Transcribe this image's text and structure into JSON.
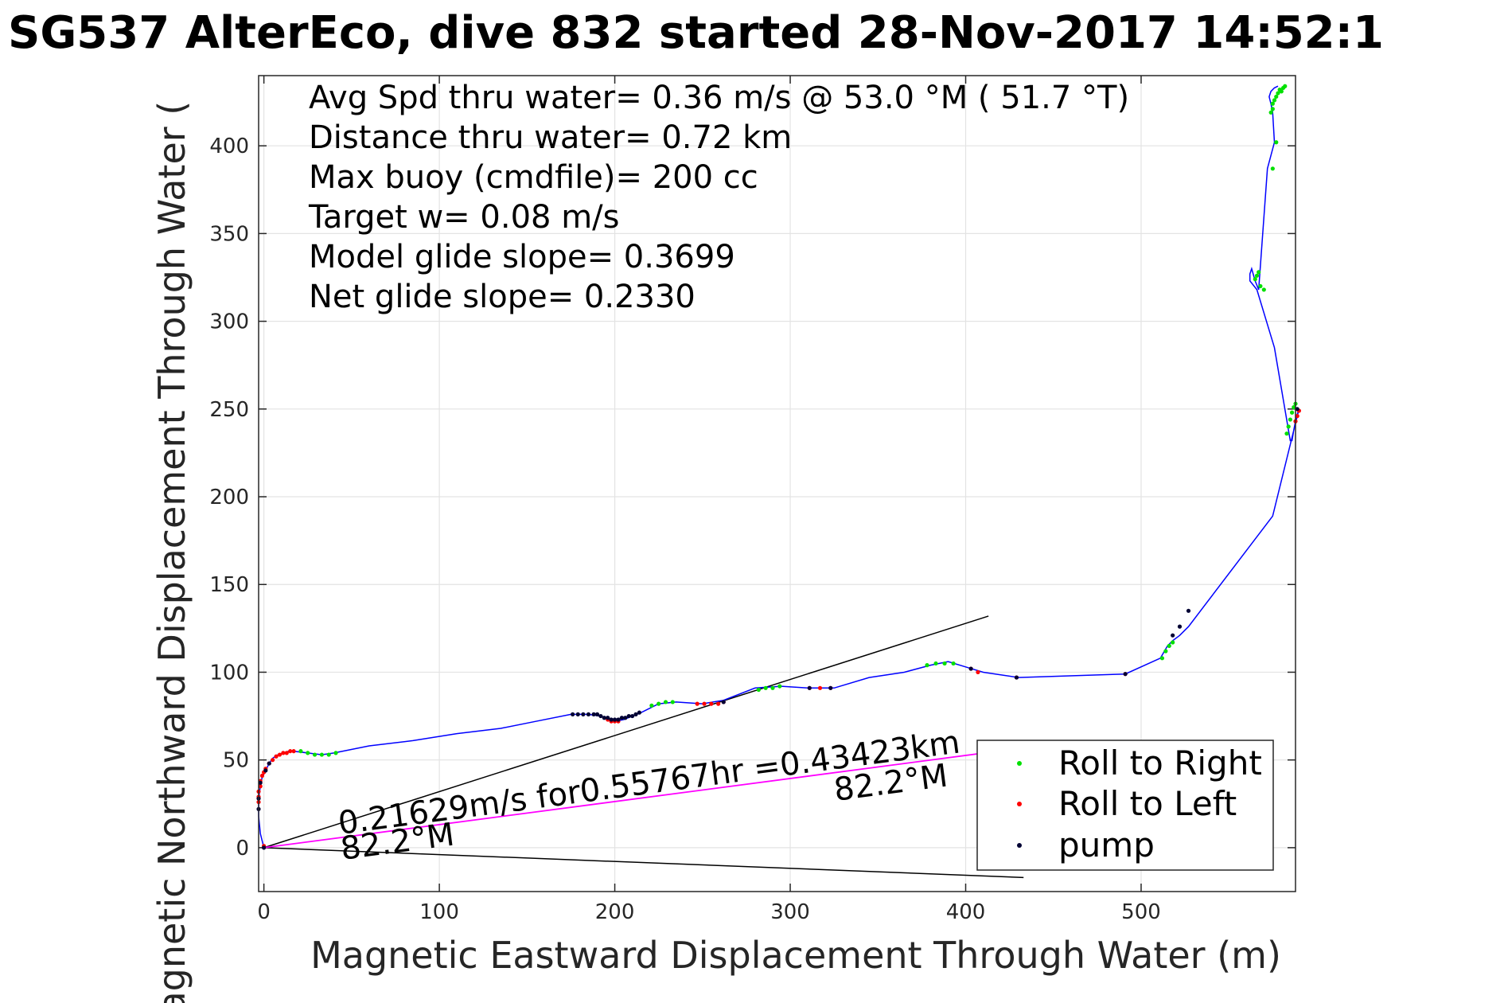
{
  "chart_data": {
    "type": "line",
    "title": "SG537 AlterEco, dive 832 started 28-Nov-2017 14:52:1",
    "xlabel": "Magnetic Eastward Displacement Through Water (m)",
    "ylabel": "Magnetic Northward Displacement Through Water (",
    "xlim": [
      -3,
      588
    ],
    "ylim": [
      -25,
      440
    ],
    "xticks": [
      "0",
      "100",
      "200",
      "300",
      "400",
      "500"
    ],
    "yticks": [
      "0",
      "50",
      "100",
      "150",
      "200",
      "250",
      "300",
      "350",
      "400"
    ],
    "grid": true,
    "colors": {
      "track": "#0000ff",
      "roll_right": "#00e000",
      "roll_left": "#ff0000",
      "pump": "#000033",
      "current_vector": "#ff00ff",
      "cone_lines": "#000000"
    },
    "info_lines": [
      "Avg Spd thru water=  0.36 m/s @  53.0 °M ( 51.7 °T)",
      "Distance thru water=  0.72 km",
      "Max buoy (cmdfile)= 200 cc",
      "Target w= 0.08 m/s",
      "Model glide slope= 0.3699",
      "Net glide slope= 0.2330"
    ],
    "annotations": {
      "current_label": "0.21629m/s for0.55767hr =0.43423km",
      "heading_end": "82.2°M",
      "heading_start": "82.2°M"
    },
    "legend": {
      "placement": "bottom-right",
      "entries": [
        "Roll to Right",
        "Roll to Left",
        "pump"
      ]
    },
    "cone_lines": [
      {
        "x": [
          0,
          413
        ],
        "y": [
          0,
          132
        ]
      },
      {
        "x": [
          0,
          433
        ],
        "y": [
          0,
          -17
        ]
      }
    ],
    "current_vector": {
      "x": [
        0,
        426
      ],
      "y": [
        0,
        56
      ]
    },
    "track": {
      "x": [
        0,
        -2,
        -3,
        -3,
        -2,
        -1,
        1,
        3,
        5,
        8,
        11,
        14,
        17,
        25,
        33,
        40,
        60,
        85,
        110,
        135,
        155,
        175,
        185,
        192,
        197,
        200,
        205,
        210,
        215,
        225,
        235,
        250,
        262,
        280,
        295,
        310,
        325,
        345,
        365,
        380,
        390,
        400,
        410,
        430,
        491,
        511,
        515,
        518,
        522,
        527,
        575,
        590,
        589,
        588,
        587,
        586,
        585,
        576,
        566,
        562,
        562,
        563,
        565,
        567,
        572,
        576,
        575,
        574,
        573,
        574,
        576,
        578
      ],
      "y": [
        0,
        8,
        18,
        28,
        35,
        40,
        44,
        48,
        51,
        53,
        54,
        55,
        55,
        54,
        53,
        54,
        58,
        61,
        65,
        68,
        72,
        76,
        76,
        75,
        73,
        72,
        73,
        75,
        77,
        82,
        83,
        82,
        84,
        91,
        92,
        91,
        91,
        97,
        100,
        104,
        106,
        103,
        100,
        97,
        99,
        108,
        115,
        118,
        121,
        126,
        189,
        250,
        247,
        243,
        238,
        232,
        232,
        285,
        318,
        323,
        327,
        330,
        323,
        318,
        387,
        402,
        419,
        424,
        428,
        431,
        433,
        434
      ]
    },
    "roll_right": {
      "x": [
        21,
        25,
        29,
        33,
        37,
        41,
        221,
        225,
        229,
        233,
        282,
        286,
        290,
        294,
        378,
        383,
        388,
        393,
        512,
        514,
        516,
        518,
        565,
        566,
        567,
        568,
        570,
        575,
        577,
        578,
        579,
        580,
        581,
        582,
        583,
        584,
        585,
        586,
        587,
        588,
        574,
        575,
        575,
        576,
        577
      ],
      "y": [
        55,
        54,
        53,
        53,
        53,
        54,
        81,
        82,
        83,
        83,
        90,
        91,
        91,
        92,
        104,
        105,
        105,
        105,
        108,
        112,
        115,
        117,
        324,
        326,
        328,
        320,
        318,
        387,
        402,
        430,
        432,
        431,
        433,
        434,
        236,
        240,
        244,
        248,
        251,
        253,
        419,
        421,
        424,
        426,
        428
      ]
    },
    "roll_left": {
      "x": [
        -3,
        -3,
        -3,
        -2,
        -2,
        -1,
        0,
        1,
        3,
        5,
        7,
        9,
        11,
        13,
        15,
        17,
        0,
        196,
        198,
        200,
        202,
        247,
        251,
        255,
        259,
        262,
        311,
        317,
        323,
        403,
        407,
        429,
        491,
        590,
        589,
        588
      ],
      "y": [
        26,
        29,
        32,
        35,
        38,
        41,
        43,
        45,
        48,
        50,
        52,
        53,
        54,
        54,
        55,
        55,
        1,
        73,
        72,
        72,
        72,
        82,
        82,
        82,
        82,
        83,
        91,
        91,
        91,
        102,
        100,
        97,
        99,
        249,
        246,
        243
      ]
    },
    "pump": {
      "x": [
        0,
        -3,
        -3,
        -2,
        1,
        3,
        176,
        179,
        182,
        185,
        188,
        190,
        192,
        194,
        196,
        198,
        200,
        202,
        204,
        206,
        208,
        210,
        212,
        214,
        262,
        311,
        323,
        403,
        429,
        491,
        518,
        522,
        527,
        589
      ],
      "y": [
        0,
        22,
        28,
        37,
        44,
        48,
        76,
        76,
        76,
        76,
        76,
        76,
        75,
        74,
        74,
        73,
        73,
        73,
        74,
        74,
        75,
        75,
        76,
        77,
        83,
        91,
        91,
        102,
        97,
        99,
        121,
        126,
        135,
        250
      ]
    }
  }
}
